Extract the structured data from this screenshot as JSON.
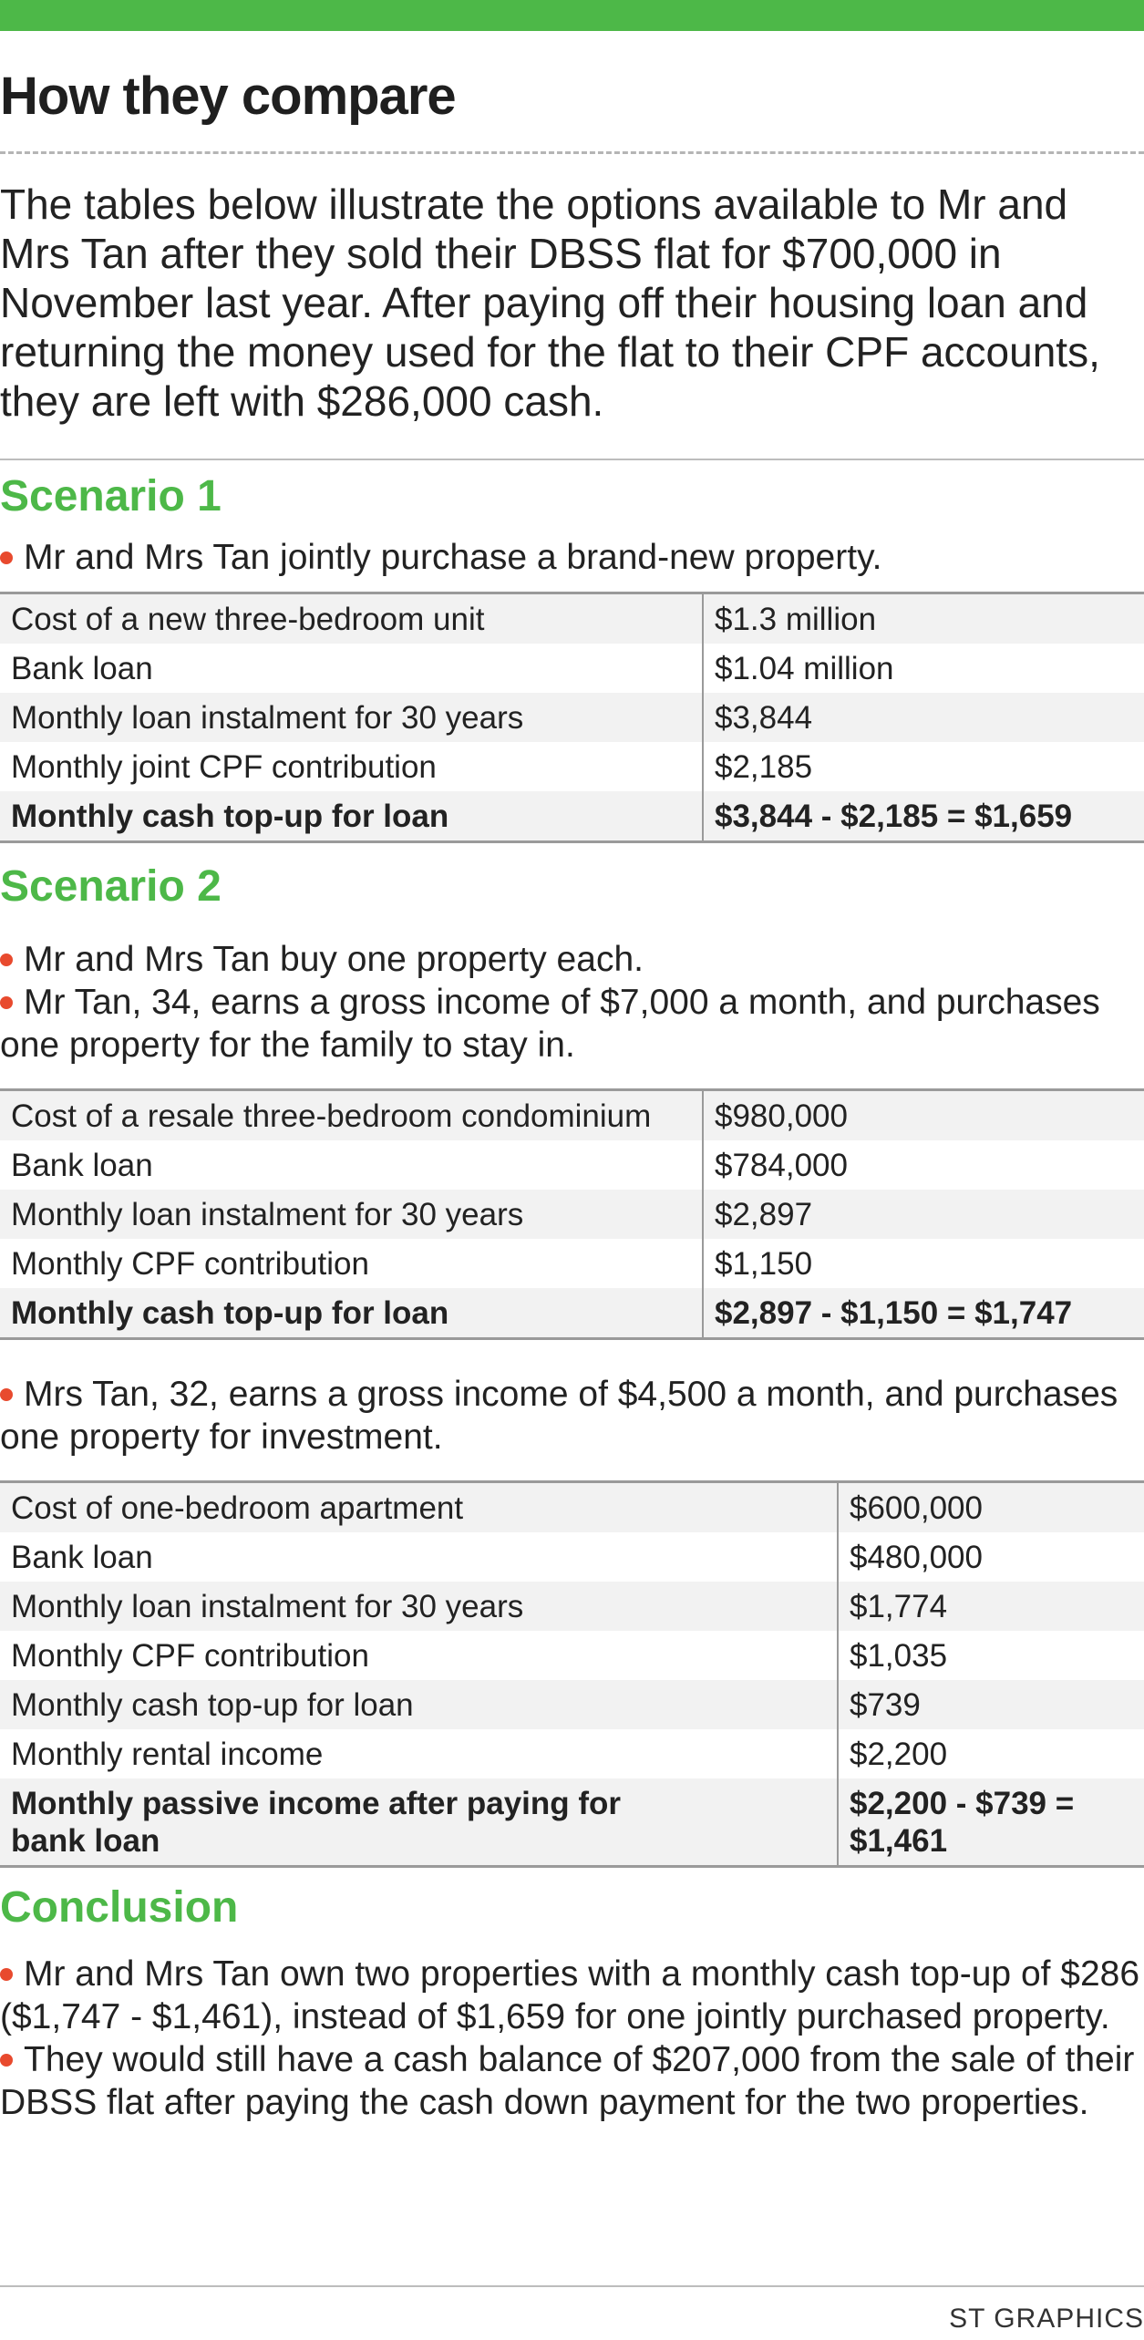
{
  "title": "How they compare",
  "intro": "The tables below illustrate the options available to Mr and Mrs Tan after they sold their DBSS flat for $700,000 in November last year. After paying off their housing loan and returning the money used for the flat to their CPF accounts, they are left with $286,000 cash.",
  "colors": {
    "accent_green": "#4db848",
    "bullet_red": "#e84a2e",
    "row_shade": "#f2f2f2"
  },
  "scenario1": {
    "heading": "Scenario 1",
    "bullets": [
      "Mr and Mrs Tan jointly purchase a brand-new property."
    ],
    "rows": [
      [
        "Cost of a new three-bedroom unit",
        "$1.3 million"
      ],
      [
        "Bank loan",
        "$1.04 million"
      ],
      [
        "Monthly loan instalment for 30 years",
        "$3,844"
      ],
      [
        "Monthly joint CPF contribution",
        "$2,185"
      ],
      [
        "Monthly cash top-up for loan",
        "$3,844 - $2,185 = $1,659"
      ]
    ]
  },
  "scenario2": {
    "heading": "Scenario 2",
    "bullets_a": [
      "Mr and Mrs Tan buy one property each.",
      "Mr Tan, 34, earns a gross income of $7,000 a month, and purchases one property for the family to stay in."
    ],
    "rows_a": [
      [
        "Cost of a resale three-bedroom condominium",
        "$980,000"
      ],
      [
        "Bank loan",
        "$784,000"
      ],
      [
        "Monthly loan instalment for 30 years",
        "$2,897"
      ],
      [
        "Monthly CPF contribution",
        "$1,150"
      ],
      [
        "Monthly cash top-up for loan",
        "$2,897 - $1,150 = $1,747"
      ]
    ],
    "bullets_b": [
      "Mrs Tan, 32, earns a gross income of $4,500 a month, and purchases one property for investment."
    ],
    "rows_b": [
      [
        "Cost of one-bedroom apartment",
        "$600,000"
      ],
      [
        "Bank loan",
        "$480,000"
      ],
      [
        "Monthly loan instalment for 30 years",
        "$1,774"
      ],
      [
        "Monthly CPF contribution",
        "$1,035"
      ],
      [
        "Monthly cash top-up for loan",
        "$739"
      ],
      [
        "Monthly rental income",
        "$2,200"
      ],
      [
        "Monthly passive income after paying for bank loan",
        "$2,200 - $739 = $1,461"
      ]
    ]
  },
  "conclusion": {
    "heading": "Conclusion",
    "bullets": [
      "Mr and Mrs Tan own two properties with a monthly cash top-up of $286 ($1,747 - $1,461), instead of $1,659 for one jointly purchased property.",
      "They would still have a cash balance of $207,000 from the sale of their DBSS flat after paying the cash down payment for the two properties."
    ]
  },
  "credit": "ST GRAPHICS"
}
